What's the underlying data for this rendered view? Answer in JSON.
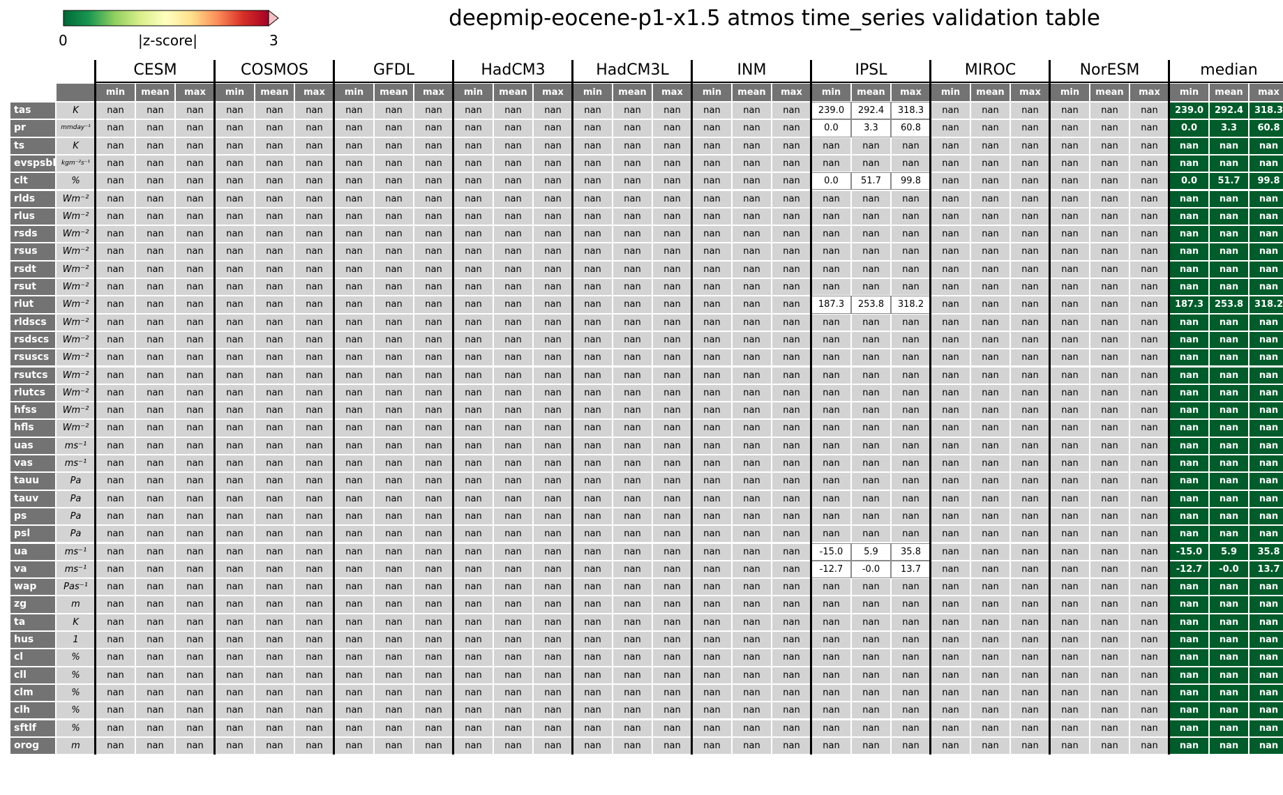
{
  "title": "deepmip-eocene-p1-x1.5 atmos time_series validation table",
  "colorbar": {
    "min_label": "0",
    "label": "|z-score|",
    "max_label": "3",
    "colors": [
      "#006837",
      "#1a9850",
      "#91cf60",
      "#d9ef8b",
      "#ffffbf",
      "#fee08b",
      "#fc8d59",
      "#d73027",
      "#a50026"
    ]
  },
  "colors": {
    "row_header": "#737373",
    "cell": "#d3d3d3",
    "cell_valid": "#ffffff",
    "median": "#005c2a"
  },
  "models": [
    "CESM",
    "COSMOS",
    "GFDL",
    "HadCM3",
    "HadCM3L",
    "INM",
    "IPSL",
    "MIROC",
    "NorESM",
    "median"
  ],
  "stats": [
    "min",
    "mean",
    "max"
  ],
  "variables": [
    {
      "name": "tas",
      "unit": "K",
      "IPSL": [
        "239.0",
        "292.4",
        "318.3"
      ]
    },
    {
      "name": "pr",
      "unit": "mmday⁻¹",
      "IPSL": [
        "0.0",
        "3.3",
        "60.8"
      ]
    },
    {
      "name": "ts",
      "unit": "K"
    },
    {
      "name": "evspsbl",
      "unit": "kgm⁻²s⁻¹"
    },
    {
      "name": "clt",
      "unit": "%",
      "IPSL": [
        "0.0",
        "51.7",
        "99.8"
      ]
    },
    {
      "name": "rlds",
      "unit": "Wm⁻²"
    },
    {
      "name": "rlus",
      "unit": "Wm⁻²"
    },
    {
      "name": "rsds",
      "unit": "Wm⁻²"
    },
    {
      "name": "rsus",
      "unit": "Wm⁻²"
    },
    {
      "name": "rsdt",
      "unit": "Wm⁻²"
    },
    {
      "name": "rsut",
      "unit": "Wm⁻²"
    },
    {
      "name": "rlut",
      "unit": "Wm⁻²",
      "IPSL": [
        "187.3",
        "253.8",
        "318.2"
      ]
    },
    {
      "name": "rldscs",
      "unit": "Wm⁻²"
    },
    {
      "name": "rsdscs",
      "unit": "Wm⁻²"
    },
    {
      "name": "rsuscs",
      "unit": "Wm⁻²"
    },
    {
      "name": "rsutcs",
      "unit": "Wm⁻²"
    },
    {
      "name": "rlutcs",
      "unit": "Wm⁻²"
    },
    {
      "name": "hfss",
      "unit": "Wm⁻²"
    },
    {
      "name": "hfls",
      "unit": "Wm⁻²"
    },
    {
      "name": "uas",
      "unit": "ms⁻¹"
    },
    {
      "name": "vas",
      "unit": "ms⁻¹"
    },
    {
      "name": "tauu",
      "unit": "Pa"
    },
    {
      "name": "tauv",
      "unit": "Pa"
    },
    {
      "name": "ps",
      "unit": "Pa"
    },
    {
      "name": "psl",
      "unit": "Pa"
    },
    {
      "name": "ua",
      "unit": "ms⁻¹",
      "IPSL": [
        "-15.0",
        "5.9",
        "35.8"
      ]
    },
    {
      "name": "va",
      "unit": "ms⁻¹",
      "IPSL": [
        "-12.7",
        "-0.0",
        "13.7"
      ]
    },
    {
      "name": "wap",
      "unit": "Pas⁻¹"
    },
    {
      "name": "zg",
      "unit": "m"
    },
    {
      "name": "ta",
      "unit": "K"
    },
    {
      "name": "hus",
      "unit": "1"
    },
    {
      "name": "cl",
      "unit": "%"
    },
    {
      "name": "cll",
      "unit": "%"
    },
    {
      "name": "clm",
      "unit": "%"
    },
    {
      "name": "clh",
      "unit": "%"
    },
    {
      "name": "sftlf",
      "unit": "%"
    },
    {
      "name": "orog",
      "unit": "m"
    }
  ],
  "chart_data": {
    "type": "table",
    "title": "deepmip-eocene-p1-x1.5 atmos time_series validation table",
    "columns": [
      "CESM",
      "COSMOS",
      "GFDL",
      "HadCM3",
      "HadCM3L",
      "INM",
      "IPSL",
      "MIROC",
      "NorESM",
      "median"
    ],
    "subcolumns": [
      "min",
      "mean",
      "max"
    ],
    "missing_value": "nan",
    "values": {
      "IPSL": {
        "tas": [
          239.0,
          292.4,
          318.3
        ],
        "pr": [
          0.0,
          3.3,
          60.8
        ],
        "clt": [
          0.0,
          51.7,
          99.8
        ],
        "rlut": [
          187.3,
          253.8,
          318.2
        ],
        "ua": [
          -15.0,
          5.9,
          35.8
        ],
        "va": [
          -12.7,
          -0.0,
          13.7
        ]
      },
      "median": {
        "tas": [
          239.0,
          292.4,
          318.3
        ],
        "pr": [
          0.0,
          3.3,
          60.8
        ],
        "clt": [
          0.0,
          51.7,
          99.8
        ],
        "rlut": [
          187.3,
          253.8,
          318.2
        ],
        "ua": [
          -15.0,
          5.9,
          35.8
        ],
        "va": [
          -12.7,
          -0.0,
          13.7
        ]
      }
    },
    "colorbar": {
      "label": "|z-score|",
      "range": [
        0,
        3
      ]
    }
  }
}
